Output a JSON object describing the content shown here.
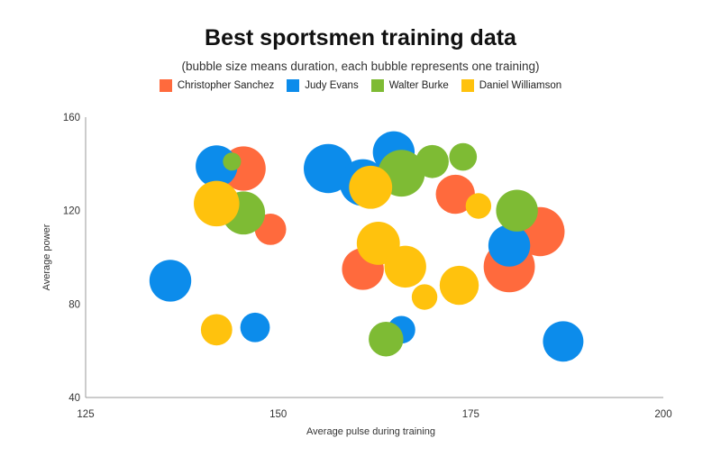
{
  "chart_data": {
    "type": "bubble",
    "title": "Best sportsmen training data",
    "subtitle": "(bubble size means duration, each bubble represents one training)",
    "xlabel": "Average pulse during training",
    "ylabel": "Average power",
    "xlim": [
      125,
      200
    ],
    "ylim": [
      40,
      160
    ],
    "xticks": [
      125,
      150,
      175,
      200
    ],
    "yticks": [
      40,
      80,
      120,
      160
    ],
    "grid": false,
    "legend_position": "top-center",
    "series": [
      {
        "name": "Christopher Sanchez",
        "color": "#FF6A3D",
        "points": [
          {
            "x": 145.5,
            "y": 138,
            "size": 18
          },
          {
            "x": 149,
            "y": 112,
            "size": 9
          },
          {
            "x": 161,
            "y": 95,
            "size": 16
          },
          {
            "x": 173,
            "y": 127,
            "size": 14
          },
          {
            "x": 184,
            "y": 111,
            "size": 22
          },
          {
            "x": 180,
            "y": 96,
            "size": 24
          }
        ]
      },
      {
        "name": "Judy Evans",
        "color": "#0C8CEB",
        "points": [
          {
            "x": 142,
            "y": 139,
            "size": 16
          },
          {
            "x": 136,
            "y": 90,
            "size": 16
          },
          {
            "x": 147,
            "y": 70,
            "size": 8
          },
          {
            "x": 156.5,
            "y": 138,
            "size": 22
          },
          {
            "x": 161,
            "y": 132,
            "size": 20
          },
          {
            "x": 165,
            "y": 145,
            "size": 16
          },
          {
            "x": 166,
            "y": 69,
            "size": 7
          },
          {
            "x": 180,
            "y": 105,
            "size": 16
          },
          {
            "x": 187,
            "y": 64,
            "size": 15
          }
        ]
      },
      {
        "name": "Walter Burke",
        "color": "#7EBB34",
        "points": [
          {
            "x": 144,
            "y": 141,
            "size": 3
          },
          {
            "x": 145.5,
            "y": 119,
            "size": 17
          },
          {
            "x": 166,
            "y": 136,
            "size": 20
          },
          {
            "x": 170,
            "y": 141,
            "size": 10
          },
          {
            "x": 174,
            "y": 143,
            "size": 7
          },
          {
            "x": 181,
            "y": 120,
            "size": 16
          },
          {
            "x": 164,
            "y": 65,
            "size": 11
          }
        ]
      },
      {
        "name": "Daniel Williamson",
        "color": "#FFC20D",
        "points": [
          {
            "x": 142,
            "y": 123,
            "size": 19
          },
          {
            "x": 142,
            "y": 69,
            "size": 9
          },
          {
            "x": 162,
            "y": 130,
            "size": 17
          },
          {
            "x": 163,
            "y": 106,
            "size": 17
          },
          {
            "x": 166.5,
            "y": 96,
            "size": 16
          },
          {
            "x": 169,
            "y": 83,
            "size": 6
          },
          {
            "x": 173.5,
            "y": 88,
            "size": 14
          },
          {
            "x": 176,
            "y": 122,
            "size": 6
          }
        ]
      }
    ]
  }
}
